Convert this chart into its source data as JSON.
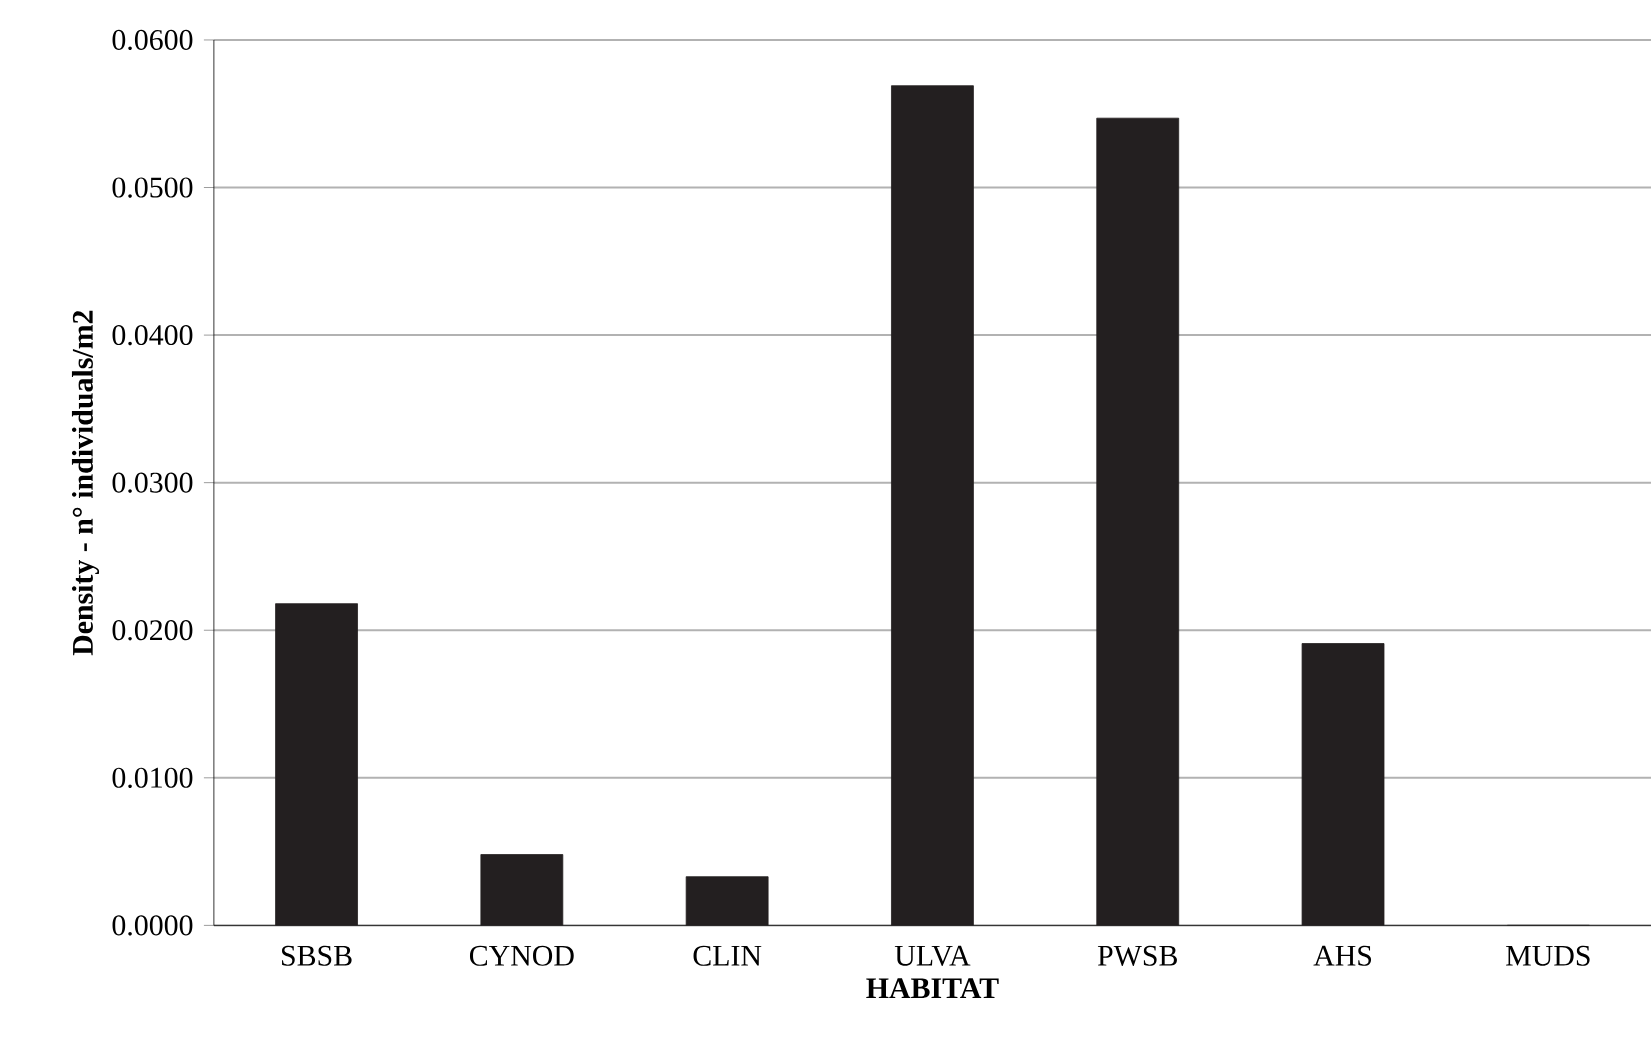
{
  "chart_data": {
    "type": "bar",
    "xlabel": "HABITAT",
    "ylabel": "Density - n° individuals/m2",
    "categories": [
      "SBSB",
      "CYNOD",
      "CLIN",
      "ULVA",
      "PWSB",
      "AHS",
      "MUDS"
    ],
    "values": [
      0.0218,
      0.0048,
      0.0033,
      0.0569,
      0.0547,
      0.0191,
      0
    ],
    "color": "#231f20",
    "ylim": [
      0,
      0.06
    ],
    "yticks": [
      {
        "value": 0,
        "label": "0.0000"
      },
      {
        "value": 0.01,
        "label": "0.0100"
      },
      {
        "value": 0.02,
        "label": "0.0200"
      },
      {
        "value": 0.03,
        "label": "0.0300"
      },
      {
        "value": 0.04,
        "label": "0.0400"
      },
      {
        "value": 0.05,
        "label": "0.0500"
      },
      {
        "value": 0.06,
        "label": "0.0600"
      }
    ],
    "grid": "y"
  }
}
